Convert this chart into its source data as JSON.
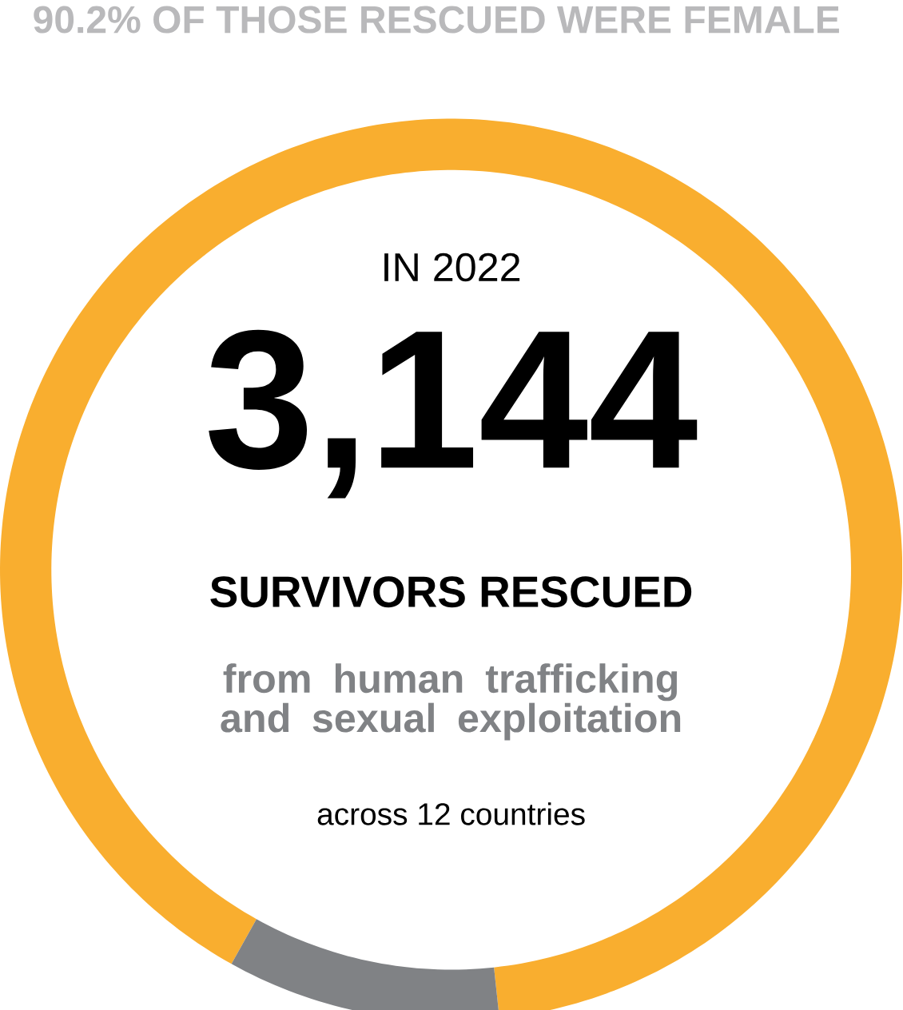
{
  "chart_data": {
    "type": "donut",
    "title": "90.2% OF THOSE RESCUED WERE FEMALE",
    "annotations": [
      "IN 2022",
      "3,144",
      "SURVIVORS RESCUED",
      "from human trafficking and sexual exploitation",
      "across 12 countries"
    ],
    "categories": [
      null,
      null
    ],
    "values": [
      90.2,
      9.8
    ],
    "colors": [
      "#f9ae2f",
      "#808285"
    ]
  }
}
